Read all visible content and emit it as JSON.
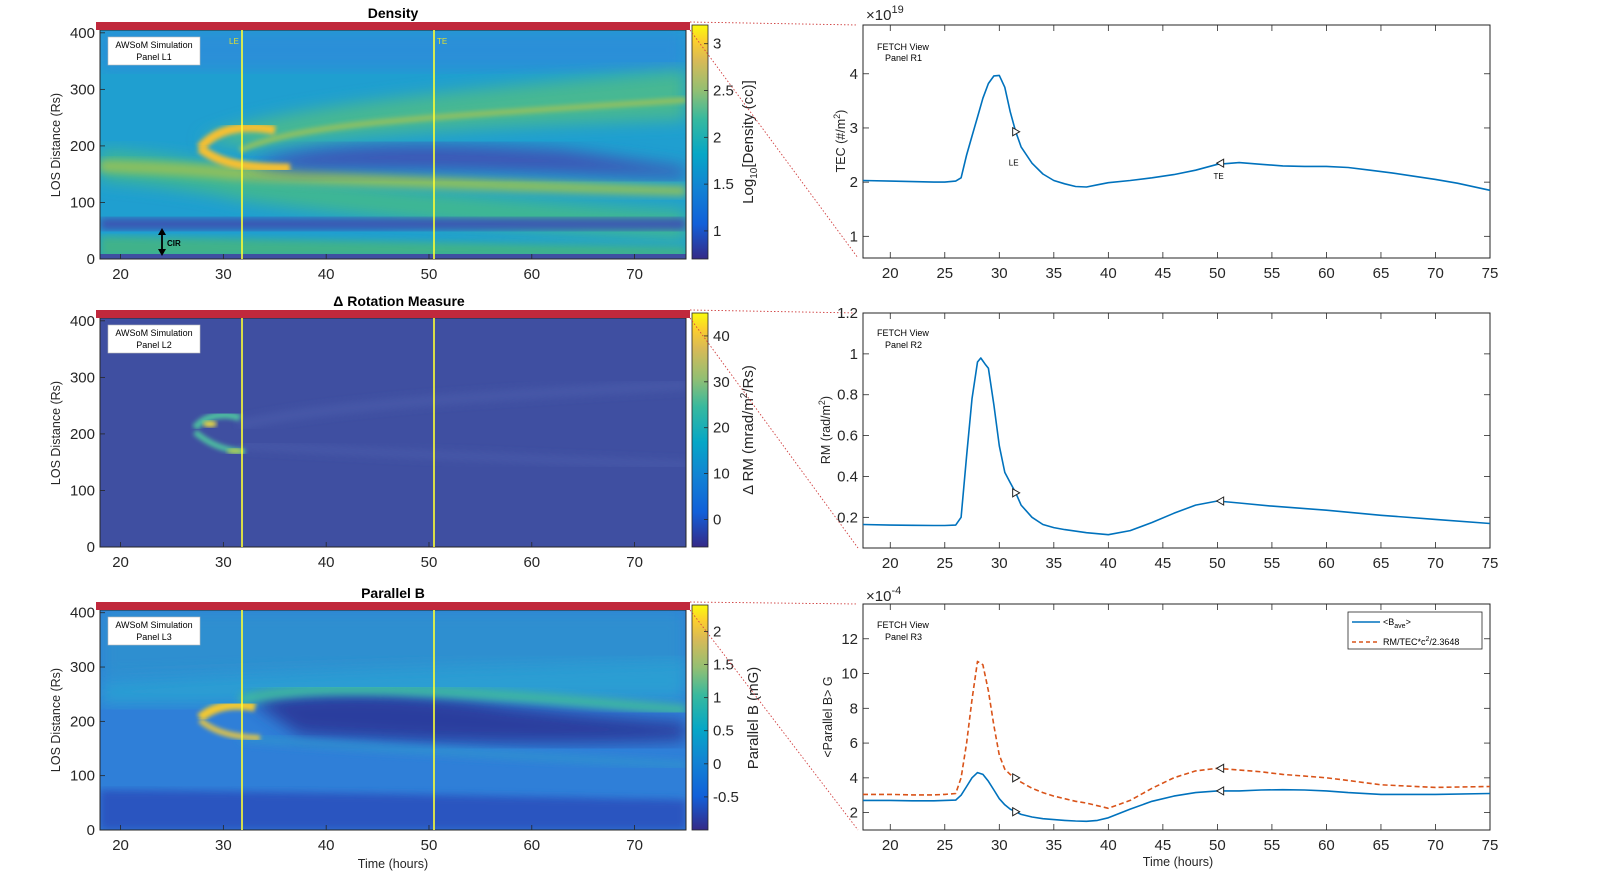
{
  "colors": {
    "bg_low": "#3f4fa1",
    "series_blue": "#0072bd",
    "series_orange": "#d95319",
    "marker_line": "#ffff33",
    "bar_red": "#c0283c",
    "connector": "#d04040"
  },
  "chart_data": [
    {
      "type": "heatmap",
      "id": "L1",
      "title": "Density",
      "xlabel": "",
      "ylabel": "LOS Distance (Rs)",
      "xlim": [
        18,
        75
      ],
      "ylim": [
        0,
        405
      ],
      "xticks": [
        "20",
        "30",
        "40",
        "50",
        "60",
        "70"
      ],
      "yticks": [
        "0",
        "100",
        "200",
        "300",
        "400"
      ],
      "colorbar_label": "Log10[Density (cc)]",
      "colorbar_label_parts": [
        "Log",
        "10",
        "[Density (cc)]"
      ],
      "colorbar_ticks": [
        "1",
        "1.5",
        "2",
        "2.5",
        "3"
      ],
      "colorbar_range": [
        0.7,
        3.2
      ],
      "annotation_box": [
        "AWSoM Simulation",
        "Panel L1"
      ],
      "markers": [
        {
          "label": "LE",
          "x": 31.5
        },
        {
          "label": "TE",
          "x": 50.3
        }
      ],
      "extra_annotation": "CIR"
    },
    {
      "type": "heatmap",
      "id": "L2",
      "title": "Δ Rotation Measure",
      "xlabel": "",
      "ylabel": "LOS Distance (Rs)",
      "xlim": [
        18,
        75
      ],
      "ylim": [
        0,
        405
      ],
      "xticks": [
        "20",
        "30",
        "40",
        "50",
        "60",
        "70"
      ],
      "yticks": [
        "0",
        "100",
        "200",
        "300",
        "400"
      ],
      "colorbar_label": "Δ RM (mrad/m2/Rs)",
      "colorbar_label_parts": [
        "Δ RM (mrad/m",
        "2",
        "/Rs)"
      ],
      "colorbar_ticks": [
        "0",
        "10",
        "20",
        "30",
        "40"
      ],
      "colorbar_range": [
        -6,
        45
      ],
      "annotation_box": [
        "AWSoM Simulation",
        "Panel L2"
      ],
      "markers": [
        {
          "label": "",
          "x": 31.5
        },
        {
          "label": "",
          "x": 50.3
        }
      ]
    },
    {
      "type": "heatmap",
      "id": "L3",
      "title": "Parallel B",
      "xlabel": "Time (hours)",
      "ylabel": "LOS Distance (Rs)",
      "xlim": [
        18,
        75
      ],
      "ylim": [
        0,
        405
      ],
      "xticks": [
        "20",
        "30",
        "40",
        "50",
        "60",
        "70"
      ],
      "yticks": [
        "0",
        "100",
        "200",
        "300",
        "400"
      ],
      "colorbar_label": "Parallel B (mG)",
      "colorbar_ticks": [
        "-0.5",
        "0",
        "0.5",
        "1",
        "1.5",
        "2"
      ],
      "colorbar_range": [
        -1.0,
        2.4
      ],
      "annotation_box": [
        "AWSoM Simulation",
        "Panel L3"
      ],
      "markers": [
        {
          "label": "",
          "x": 31.5
        },
        {
          "label": "",
          "x": 50.3
        }
      ]
    },
    {
      "type": "line",
      "id": "R1",
      "title": "",
      "xlabel": "",
      "ylabel": "TEC (#/m2)",
      "ylabel_parts": [
        "TEC (#/m",
        "2",
        ")"
      ],
      "exponent": "×10",
      "exponent_power": "19",
      "xlim": [
        17.5,
        75
      ],
      "ylim": [
        0.6,
        4.9
      ],
      "xticks": [
        "20",
        "25",
        "30",
        "35",
        "40",
        "45",
        "50",
        "55",
        "60",
        "65",
        "70",
        "75"
      ],
      "yticks": [
        "1",
        "2",
        "3",
        "4"
      ],
      "annotation_lines": [
        "FETCH View",
        "Panel R1"
      ],
      "series": [
        {
          "name": "TEC",
          "color": "#0072bd",
          "dash": false,
          "x": [
            17.5,
            20,
            22,
            24,
            25,
            26,
            26.5,
            27,
            27.5,
            28,
            28.5,
            29,
            29.5,
            30,
            30.5,
            31,
            31.5,
            32,
            33,
            34,
            35,
            36,
            37,
            38,
            39,
            40,
            42,
            44,
            46,
            48,
            50,
            52,
            54,
            56,
            58,
            60,
            62,
            64,
            66,
            68,
            70,
            72,
            75
          ],
          "values": [
            2.03,
            2.02,
            2.01,
            2.0,
            2.0,
            2.02,
            2.08,
            2.5,
            2.85,
            3.2,
            3.55,
            3.82,
            3.96,
            3.97,
            3.75,
            3.3,
            2.93,
            2.65,
            2.35,
            2.15,
            2.03,
            1.97,
            1.92,
            1.91,
            1.95,
            1.99,
            2.03,
            2.08,
            2.14,
            2.22,
            2.33,
            2.36,
            2.33,
            2.3,
            2.29,
            2.29,
            2.27,
            2.22,
            2.17,
            2.11,
            2.05,
            1.98,
            1.85
          ]
        }
      ],
      "markers": [
        {
          "label": "LE",
          "x": 31.5,
          "y": 2.93,
          "dir": "right"
        },
        {
          "label": "TE",
          "x": 50.3,
          "y": 2.35,
          "dir": "left"
        }
      ]
    },
    {
      "type": "line",
      "id": "R2",
      "title": "",
      "xlabel": "",
      "ylabel": "RM (rad/m2)",
      "ylabel_parts": [
        "RM (rad/m",
        "2",
        ")"
      ],
      "xlim": [
        17.5,
        75
      ],
      "ylim": [
        0.05,
        1.2
      ],
      "xticks": [
        "20",
        "25",
        "30",
        "35",
        "40",
        "45",
        "50",
        "55",
        "60",
        "65",
        "70",
        "75"
      ],
      "yticks": [
        "0.2",
        "0.4",
        "0.6",
        "0.8",
        "1",
        "1.2"
      ],
      "annotation_lines": [
        "FETCH View",
        "Panel R2"
      ],
      "series": [
        {
          "name": "RM",
          "color": "#0072bd",
          "dash": false,
          "x": [
            17.5,
            20,
            22,
            24,
            25,
            26,
            26.5,
            27,
            27.5,
            28,
            28.3,
            28.7,
            29,
            29.5,
            30,
            30.5,
            31,
            31.5,
            32,
            33,
            34,
            35,
            36,
            38,
            40,
            42,
            44,
            46,
            48,
            50,
            52,
            55,
            60,
            65,
            70,
            75
          ],
          "values": [
            0.165,
            0.162,
            0.161,
            0.16,
            0.16,
            0.162,
            0.2,
            0.5,
            0.78,
            0.96,
            0.98,
            0.95,
            0.93,
            0.75,
            0.55,
            0.42,
            0.37,
            0.32,
            0.26,
            0.2,
            0.165,
            0.15,
            0.14,
            0.125,
            0.115,
            0.135,
            0.175,
            0.22,
            0.26,
            0.28,
            0.27,
            0.255,
            0.235,
            0.21,
            0.19,
            0.17
          ]
        }
      ],
      "markers": [
        {
          "label": "",
          "x": 31.5,
          "y": 0.32,
          "dir": "right"
        },
        {
          "label": "",
          "x": 50.3,
          "y": 0.28,
          "dir": "left"
        }
      ]
    },
    {
      "type": "line",
      "id": "R3",
      "title": "",
      "xlabel": "Time (hours)",
      "ylabel": "<Parallel B> G",
      "exponent": "×10",
      "exponent_power": "-4",
      "xlim": [
        17.5,
        75
      ],
      "ylim": [
        1.0,
        14.0
      ],
      "xticks": [
        "20",
        "25",
        "30",
        "35",
        "40",
        "45",
        "50",
        "55",
        "60",
        "65",
        "70",
        "75"
      ],
      "yticks": [
        "2",
        "4",
        "6",
        "8",
        "10",
        "12"
      ],
      "annotation_lines": [
        "FETCH View",
        "Panel R3"
      ],
      "legend": {
        "location": "top-right",
        "entries": [
          "<Bave>",
          "RM/TEC*c2/2.3648"
        ]
      },
      "series": [
        {
          "name": "<Bave>",
          "color": "#0072bd",
          "dash": false,
          "x": [
            17.5,
            20,
            22,
            24,
            25,
            26,
            26.5,
            27,
            27.5,
            28,
            28.5,
            29,
            29.5,
            30,
            30.5,
            31,
            31.5,
            32,
            33,
            34,
            35,
            36,
            37,
            38,
            39,
            40,
            42,
            44,
            46,
            48,
            50,
            52,
            54,
            56,
            58,
            60,
            62,
            65,
            70,
            75
          ],
          "values": [
            2.7,
            2.7,
            2.68,
            2.68,
            2.7,
            2.72,
            3.0,
            3.5,
            4.0,
            4.3,
            4.2,
            3.8,
            3.3,
            2.8,
            2.45,
            2.2,
            2.05,
            1.9,
            1.75,
            1.65,
            1.6,
            1.55,
            1.52,
            1.5,
            1.55,
            1.7,
            2.2,
            2.65,
            2.95,
            3.15,
            3.25,
            3.25,
            3.3,
            3.32,
            3.3,
            3.25,
            3.15,
            3.05,
            3.05,
            3.1
          ]
        },
        {
          "name": "RM/TEC*c2/2.3648",
          "color": "#d95319",
          "dash": true,
          "x": [
            17.5,
            20,
            22,
            24,
            25,
            26,
            26.5,
            27,
            27.5,
            28,
            28.5,
            29,
            29.5,
            30,
            30.5,
            31,
            31.5,
            32,
            33,
            34,
            35,
            36,
            37,
            38,
            39,
            40,
            42,
            44,
            46,
            48,
            50,
            52,
            54,
            56,
            58,
            60,
            62,
            65,
            70,
            75
          ],
          "values": [
            3.05,
            3.05,
            3.02,
            3.02,
            3.05,
            3.1,
            4.0,
            6.0,
            8.5,
            10.7,
            10.5,
            9.0,
            7.0,
            5.3,
            4.5,
            4.2,
            4.0,
            3.75,
            3.4,
            3.15,
            2.95,
            2.8,
            2.65,
            2.55,
            2.4,
            2.25,
            2.7,
            3.4,
            4.0,
            4.4,
            4.55,
            4.45,
            4.35,
            4.2,
            4.1,
            4.0,
            3.85,
            3.6,
            3.45,
            3.5
          ]
        }
      ],
      "markers": [
        {
          "label": "",
          "x": 31.5,
          "y": 2.05,
          "dir": "right",
          "series": 0
        },
        {
          "label": "",
          "x": 50.3,
          "y": 3.25,
          "dir": "left",
          "series": 0
        },
        {
          "label": "",
          "x": 31.5,
          "y": 4.0,
          "dir": "right",
          "series": 1
        },
        {
          "label": "",
          "x": 50.3,
          "y": 4.55,
          "dir": "left",
          "series": 1
        }
      ]
    }
  ]
}
